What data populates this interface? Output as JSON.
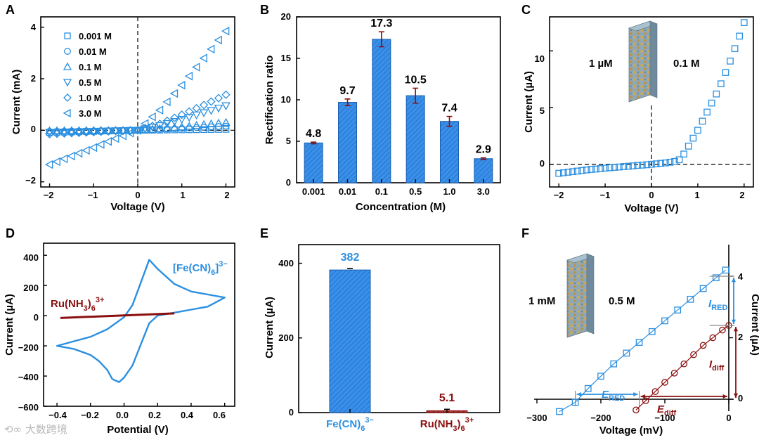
{
  "colors": {
    "blue": "#2b8fe0",
    "dark_red": "#8b0f0f",
    "bar_blue": "#3a8fe8",
    "axis": "#000000"
  },
  "watermark": "⟲∞ 大数跨境",
  "chart_data": [
    {
      "panel": "A",
      "type": "scatter",
      "xlabel": "Voltage (V)",
      "ylabel": "Current (mA)",
      "xlim": [
        -2.2,
        2.2
      ],
      "ylim": [
        -2.2,
        4.4
      ],
      "xticks": [
        -2,
        -1,
        0,
        1,
        2
      ],
      "yticks": [
        -2,
        0,
        2,
        4
      ],
      "legend_position": "top-left",
      "series": [
        {
          "name": "0.001 M",
          "marker": "square",
          "x": [
            -2,
            -1.5,
            -1,
            -0.5,
            0,
            0.5,
            1,
            1.5,
            2
          ],
          "y": [
            -0.08,
            -0.06,
            -0.04,
            -0.02,
            0,
            0.01,
            0.02,
            0.03,
            0.04
          ]
        },
        {
          "name": "0.01 M",
          "marker": "circle",
          "x": [
            -2,
            -1.5,
            -1,
            -0.5,
            0,
            0.5,
            1,
            1.5,
            2
          ],
          "y": [
            -0.04,
            -0.03,
            -0.02,
            -0.01,
            0,
            0.03,
            0.07,
            0.12,
            0.16
          ]
        },
        {
          "name": "0.1 M",
          "marker": "triangle-up",
          "x": [
            -2,
            -1.5,
            -1,
            -0.5,
            0,
            0.5,
            1,
            1.5,
            2
          ],
          "y": [
            -0.02,
            -0.015,
            -0.01,
            -0.005,
            0,
            0.06,
            0.13,
            0.22,
            0.3
          ]
        },
        {
          "name": "0.5 M",
          "marker": "triangle-down",
          "x": [
            -2,
            -1.5,
            -1,
            -0.5,
            0,
            0.5,
            1,
            1.5,
            2
          ],
          "y": [
            -0.09,
            -0.07,
            -0.05,
            -0.02,
            0,
            0.18,
            0.42,
            0.68,
            0.95
          ]
        },
        {
          "name": "1.0 M",
          "marker": "diamond",
          "x": [
            -2,
            -1.5,
            -1,
            -0.5,
            0,
            0.5,
            1,
            1.5,
            2
          ],
          "y": [
            -0.15,
            -0.11,
            -0.07,
            -0.03,
            0,
            0.25,
            0.6,
            0.98,
            1.38
          ]
        },
        {
          "name": "3.0 M",
          "marker": "triangle-left",
          "x": [
            -2,
            -1.5,
            -1,
            -0.5,
            0,
            0.5,
            1,
            1.5,
            2
          ],
          "y": [
            -1.33,
            -1.0,
            -0.67,
            -0.32,
            0,
            0.78,
            1.75,
            2.8,
            3.85
          ]
        }
      ]
    },
    {
      "panel": "B",
      "type": "bar",
      "xlabel": "Concentration (M)",
      "ylabel": "Rectification ratio",
      "ylim": [
        0,
        20
      ],
      "yticks": [
        0,
        5,
        10,
        15,
        20
      ],
      "categories": [
        "0.001",
        "0.01",
        "0.1",
        "0.5",
        "1.0",
        "3.0"
      ],
      "values": [
        4.8,
        9.7,
        17.3,
        10.5,
        7.4,
        2.9
      ],
      "errors": [
        0.1,
        0.4,
        0.9,
        0.9,
        0.6,
        0.1
      ],
      "value_labels": [
        "4.8",
        "9.7",
        "17.3",
        "10.5",
        "7.4",
        "2.9"
      ]
    },
    {
      "panel": "C",
      "type": "scatter",
      "xlabel": "Voltage (V)",
      "ylabel": "Current (µA)",
      "xlim": [
        -2.2,
        2.2
      ],
      "ylim": [
        -2,
        13
      ],
      "xticks": [
        -2,
        -1,
        0,
        1,
        2
      ],
      "yticks": [
        0,
        5,
        10
      ],
      "annotations": [
        "1 µM",
        "0.1 M"
      ],
      "series": [
        {
          "name": "I-V",
          "marker": "square",
          "x": [
            -2,
            -1.9,
            -1.8,
            -1.7,
            -1.6,
            -1.5,
            -1.4,
            -1.3,
            -1.2,
            -1.1,
            -1,
            -0.9,
            -0.8,
            -0.7,
            -0.6,
            -0.5,
            -0.4,
            -0.3,
            -0.2,
            -0.1,
            0,
            0.1,
            0.2,
            0.3,
            0.4,
            0.5,
            0.6,
            0.7,
            0.8,
            0.9,
            1,
            1.1,
            1.2,
            1.3,
            1.4,
            1.5,
            1.6,
            1.7,
            1.8,
            1.9,
            2
          ],
          "y": [
            -0.8,
            -0.75,
            -0.7,
            -0.65,
            -0.6,
            -0.55,
            -0.5,
            -0.45,
            -0.42,
            -0.38,
            -0.34,
            -0.3,
            -0.27,
            -0.24,
            -0.2,
            -0.17,
            -0.14,
            -0.1,
            -0.07,
            -0.04,
            0,
            0.04,
            0.08,
            0.12,
            0.18,
            0.25,
            0.4,
            0.9,
            1.6,
            2.3,
            3.0,
            3.8,
            4.6,
            5.4,
            6.2,
            7.1,
            8.1,
            9.1,
            10.2,
            11.3,
            12.5
          ]
        }
      ]
    },
    {
      "panel": "D",
      "type": "line",
      "xlabel": "Potential (V)",
      "ylabel": "Current (µA)",
      "xlim": [
        -0.48,
        0.66
      ],
      "ylim": [
        -600,
        480
      ],
      "xticks": [
        -0.4,
        -0.2,
        0.0,
        0.2,
        0.4,
        0.6
      ],
      "yticks": [
        -600,
        -400,
        -200,
        0,
        200,
        400
      ],
      "xtick_labels": [
        "−0.4",
        "−0.2",
        "0.0",
        "0.2",
        "0.4",
        "0.6"
      ],
      "series": [
        {
          "name": "[Fe(CN)6]3−",
          "x": [
            -0.4,
            -0.3,
            -0.2,
            -0.1,
            0,
            0.05,
            0.1,
            0.15,
            0.2,
            0.3,
            0.4,
            0.5,
            0.6,
            0.5,
            0.4,
            0.3,
            0.2,
            0.15,
            0.1,
            0.05,
            0,
            -0.03,
            -0.07,
            -0.1,
            -0.15,
            -0.2,
            -0.3,
            -0.4
          ],
          "y": [
            -200,
            -170,
            -140,
            -90,
            -10,
            70,
            220,
            370,
            310,
            210,
            160,
            140,
            120,
            60,
            40,
            20,
            0,
            -50,
            -190,
            -330,
            -410,
            -440,
            -420,
            -360,
            -300,
            -260,
            -220,
            -200
          ]
        },
        {
          "name": "Ru(NH3)6 3+",
          "x": [
            -0.38,
            0.3
          ],
          "y": [
            -15,
            15
          ]
        }
      ]
    },
    {
      "panel": "E",
      "type": "bar",
      "ylabel": "Current (µA)",
      "ylim": [
        0,
        450
      ],
      "yticks": [
        0,
        200,
        400
      ],
      "categories": [
        "Fe(CN)6 3−",
        "Ru(NH3)6 3+"
      ],
      "values": [
        382,
        5.1
      ],
      "value_labels": [
        "382",
        "5.1"
      ]
    },
    {
      "panel": "F",
      "type": "line",
      "xlabel": "Voltage (mV)",
      "ylabel": "Current (µA)",
      "xlim": [
        -300,
        0
      ],
      "ylim": [
        -0.3,
        4.5
      ],
      "xticks": [
        -300,
        -200,
        -100,
        0
      ],
      "yticks": [
        0,
        2,
        4
      ],
      "xtick_labels": [
        "−300",
        "−200",
        "−100",
        "0"
      ],
      "annotations": [
        "1 mM",
        "0.5 M",
        "I",
        "RED",
        "I",
        "diff",
        "E",
        "RED",
        "E",
        "diff"
      ],
      "series": [
        {
          "name": "1 mM / 0.5 M",
          "marker": "square",
          "x": [
            -265,
            -240,
            -220,
            -200,
            -180,
            -160,
            -140,
            -120,
            -100,
            -80,
            -60,
            -40,
            -20,
            -5
          ],
          "y": [
            -0.4,
            -0.1,
            0.35,
            0.75,
            1.15,
            1.5,
            1.85,
            2.2,
            2.55,
            2.9,
            3.25,
            3.6,
            3.95,
            4.2
          ]
        },
        {
          "name": "0.5 M / 1 mM",
          "marker": "circle",
          "x": [
            -145,
            -130,
            -115,
            -100,
            -85,
            -70,
            -55,
            -40,
            -25,
            -10,
            0
          ],
          "y": [
            -0.35,
            -0.05,
            0.25,
            0.55,
            0.85,
            1.15,
            1.45,
            1.75,
            2.0,
            2.25,
            2.4
          ]
        }
      ]
    }
  ],
  "panels": {
    "A": {
      "letter": "A",
      "ylabel": "Current (mA)",
      "xlabel": "Voltage (V)",
      "yticks": [
        "4",
        "2",
        "0",
        "−2"
      ],
      "xticks": [
        "−2",
        "−1",
        "0",
        "1",
        "2"
      ],
      "legend": [
        "0.001 M",
        "0.01 M",
        "0.1 M",
        "0.5 M",
        "1.0 M",
        "3.0 M"
      ]
    },
    "B": {
      "letter": "B",
      "ylabel": "Rectification ratio",
      "xlabel": "Concentration (M)",
      "yticks": [
        "20",
        "15",
        "10",
        "5",
        "0"
      ],
      "categories": [
        "0.001",
        "0.01",
        "0.1",
        "0.5",
        "1.0",
        "3.0"
      ],
      "value_labels": [
        "4.8",
        "9.7",
        "17.3",
        "10.5",
        "7.4",
        "2.9"
      ]
    },
    "C": {
      "letter": "C",
      "ylabel": "Current (µA)",
      "xlabel": "Voltage (V)",
      "yticks": [
        "10",
        "5",
        "0"
      ],
      "xticks": [
        "−2",
        "−1",
        "0",
        "1",
        "2"
      ],
      "left_label": "1 µM",
      "right_label": "0.1 M"
    },
    "D": {
      "letter": "D",
      "ylabel": "Current (µA)",
      "xlabel": "Potential (V)",
      "yticks": [
        "400",
        "200",
        "0",
        "−200",
        "−400",
        "−600"
      ],
      "xticks": [
        "−0.4",
        "−0.2",
        "0.0",
        "0.2",
        "0.4",
        "0.6"
      ],
      "fe_label_base": "[Fe(CN)",
      "fe_label_sub": "6",
      "fe_label_sup": "3−",
      "fe_label_close": "]",
      "ru_label_base": "Ru(NH",
      "ru_label_sub": "3",
      "ru_label_mid": ")",
      "ru_label_sub2": "6",
      "ru_label_sup": "3+"
    },
    "E": {
      "letter": "E",
      "ylabel": "Current (µA)",
      "yticks": [
        "400",
        "200",
        "0"
      ],
      "value1": "382",
      "value2": "5.1",
      "cat1_base": "Fe(CN)",
      "cat1_sub": "6",
      "cat1_sup": "3−",
      "cat2_base": "Ru(NH",
      "cat2_sub": "3",
      "cat2_mid": ")",
      "cat2_sub2": "6",
      "cat2_sup": "3+"
    },
    "F": {
      "letter": "F",
      "ylabel": "Current (µA)",
      "xlabel": "Voltage (mV)",
      "yticks": [
        "4",
        "2",
        "0"
      ],
      "xticks": [
        "−300",
        "−200",
        "−100",
        "0"
      ],
      "left_label": "1 mM",
      "right_label": "0.5 M",
      "i_red": "I",
      "i_red_sub": "RED",
      "i_diff": "I",
      "i_diff_sub": "diff",
      "e_red": "E",
      "e_red_sub": "RED",
      "e_diff": "E",
      "e_diff_sub": "diff"
    }
  }
}
